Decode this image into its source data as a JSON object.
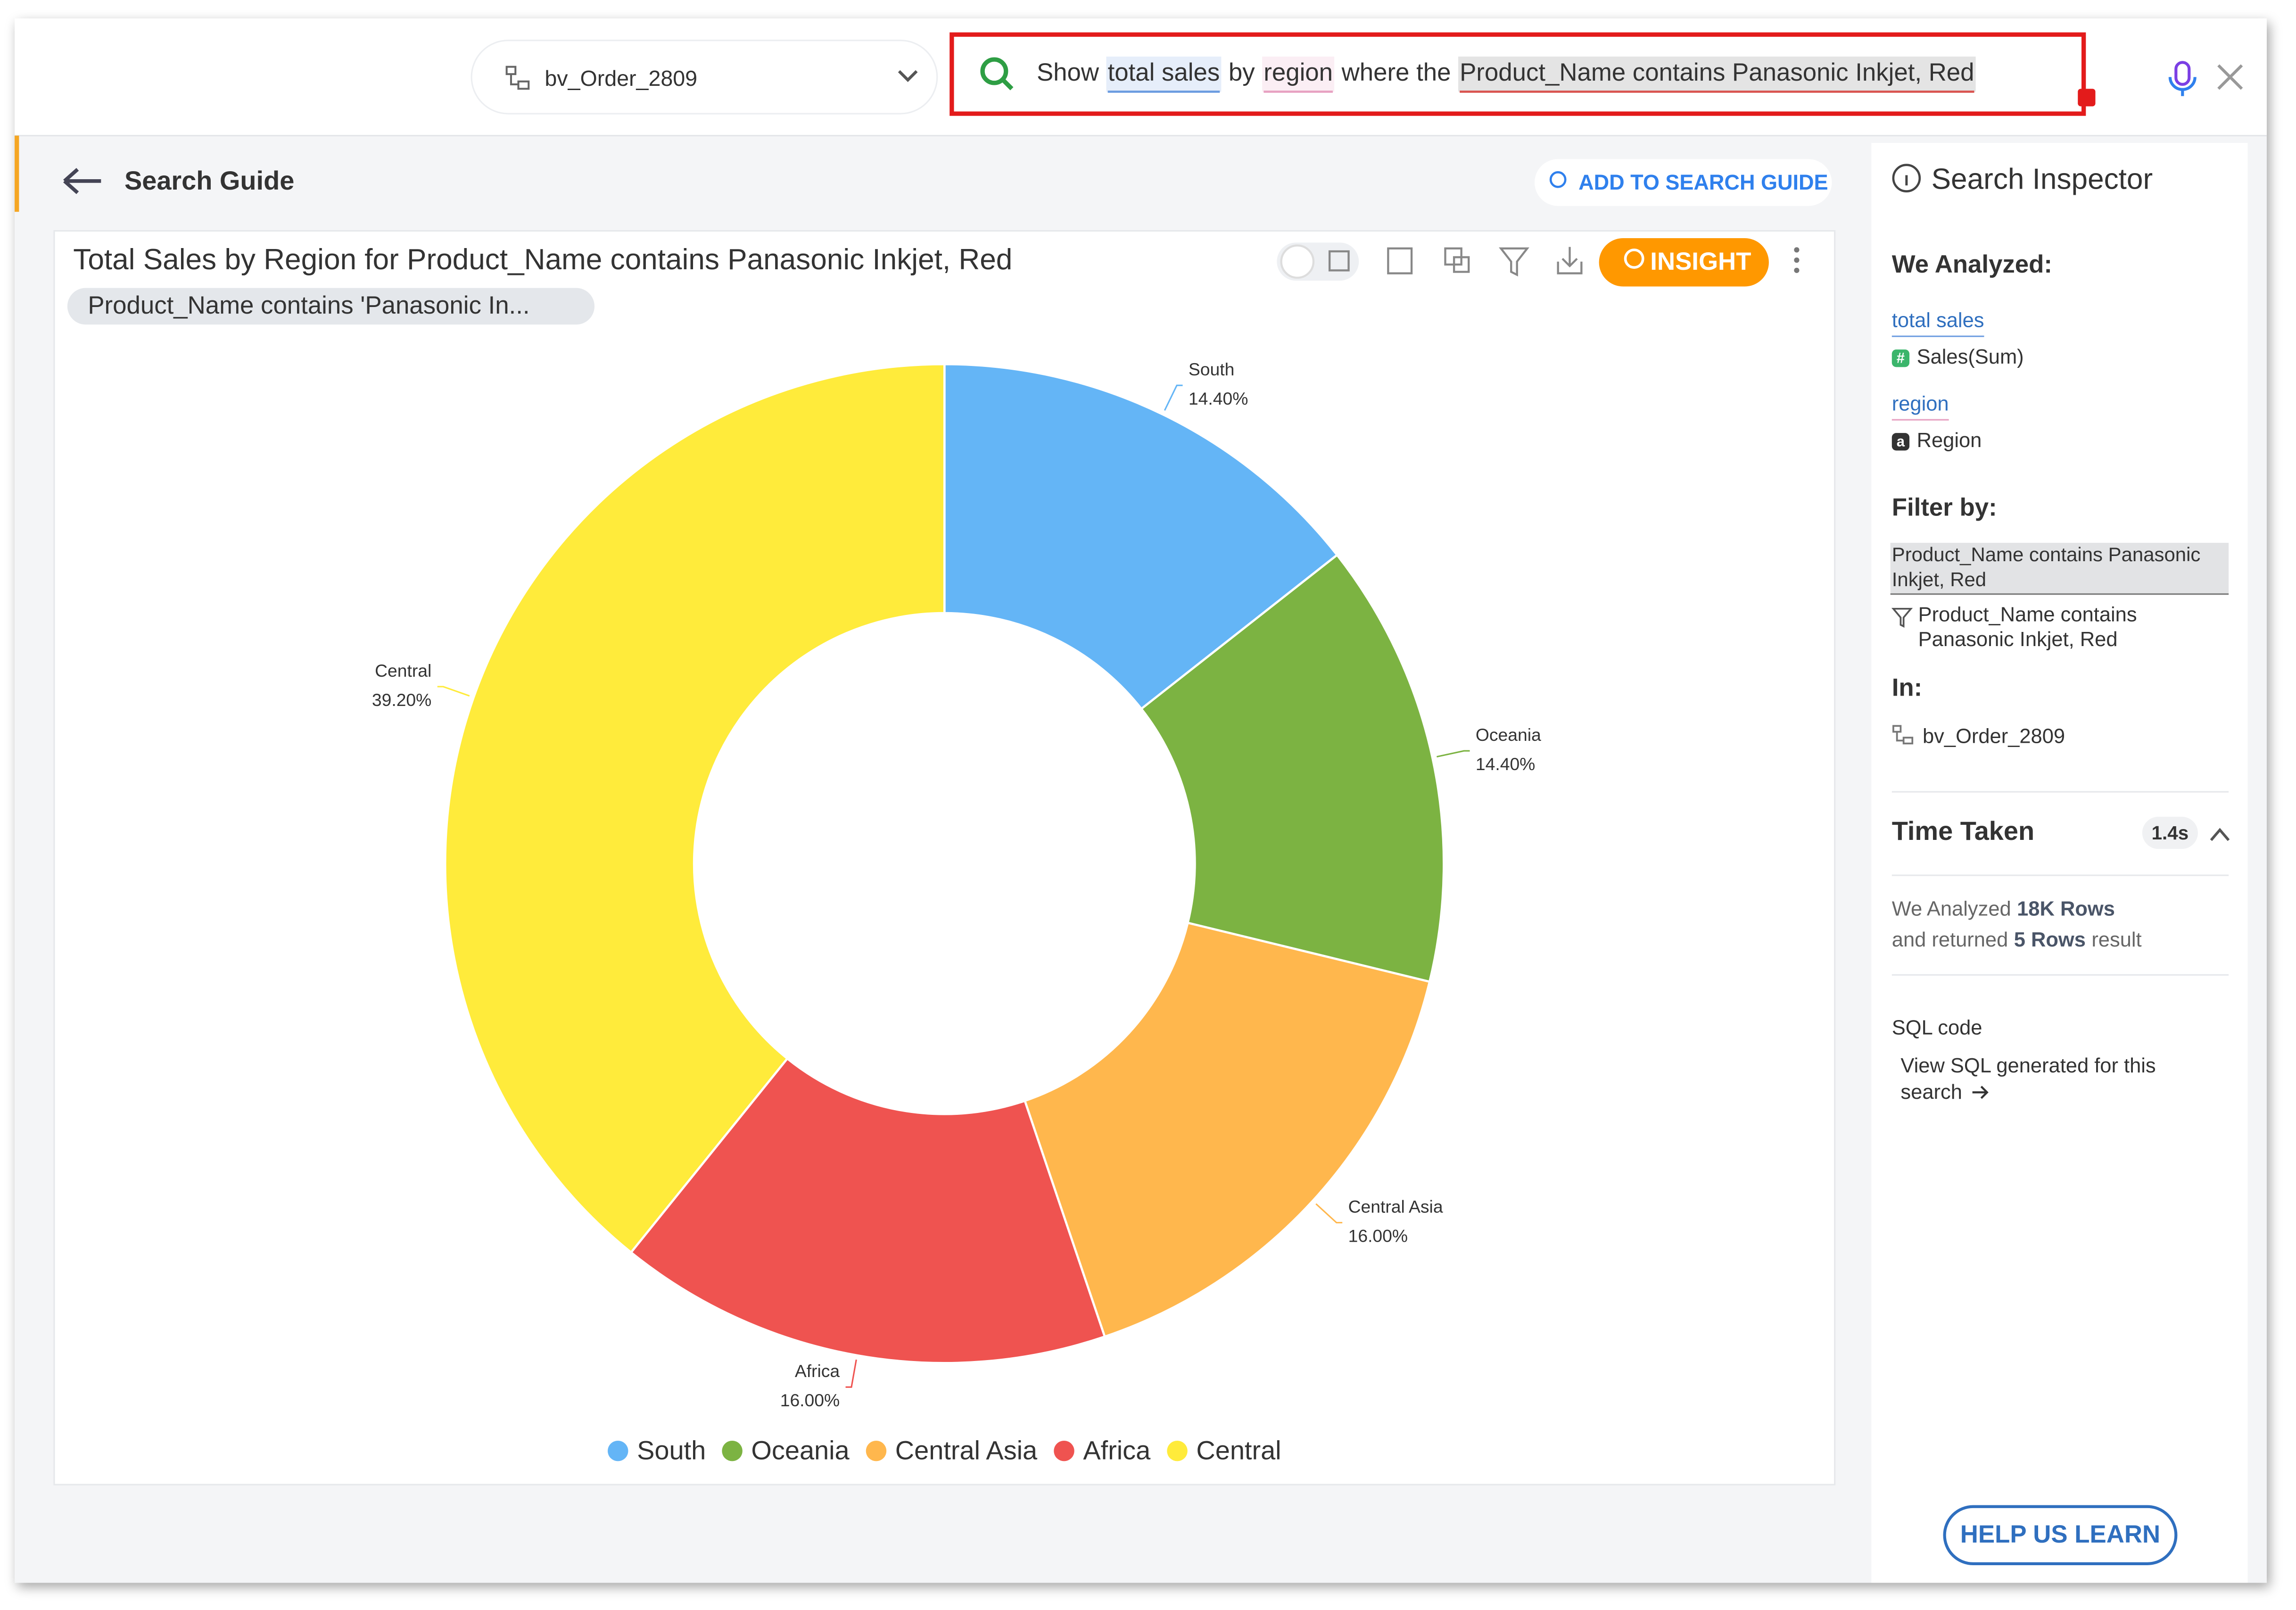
{
  "search_bar": {
    "dataset": "bv_Order_2809",
    "query": [
      "Show",
      "total sales",
      "by",
      "region",
      "where the",
      "Product_Name contains Panasonic Inkjet, Red"
    ]
  },
  "nav": {
    "back_label": "Search Guide",
    "add_button": "ADD TO SEARCH GUIDE"
  },
  "chart_data": {
    "type": "pie",
    "donut": true,
    "title": "Total Sales by Region for Product_Name contains Panasonic Inkjet, Red",
    "filter_chip": "Product_Name contains 'Panasonic In...",
    "insight_button": "INSIGHT",
    "categories": [
      "South",
      "Oceania",
      "Central Asia",
      "Africa",
      "Central"
    ],
    "values": [
      14.4,
      14.4,
      16,
      16,
      39.2
    ],
    "value_labels": [
      "14.40%",
      "14.40%",
      "16.00%",
      "16.00%",
      "39.20%"
    ],
    "colors": [
      "#64b5f6",
      "#7cb342",
      "#ffb74d",
      "#ef5350",
      "#ffeb3b"
    ],
    "legend": "bottom"
  },
  "inspector": {
    "title": "Search Inspector",
    "analyzed_heading": "We Analyzed:",
    "analyzed": [
      {
        "term": "total sales",
        "icon": "#",
        "column": "Sales(Sum)"
      },
      {
        "term": "region",
        "icon": "a",
        "column": "Region"
      }
    ],
    "filter_heading": "Filter by:",
    "filter_term": "Product_Name contains Panasonic Inkjet, Red",
    "filter_detail": "Product_Name contains Panasonic Inkjet, Red",
    "in_heading": "In:",
    "dataset": "bv_Order_2809",
    "time_heading": "Time Taken",
    "time_value": "1.4s",
    "stats": {
      "analyzed_prefix": "We Analyzed",
      "analyzed_rows": "18K Rows",
      "returned_prefix": "and returned",
      "returned_rows": "5 Rows",
      "returned_suffix": "result"
    },
    "sql_heading": "SQL code",
    "sql_link": "View SQL generated for this search",
    "help_button": "HELP US LEARN"
  }
}
